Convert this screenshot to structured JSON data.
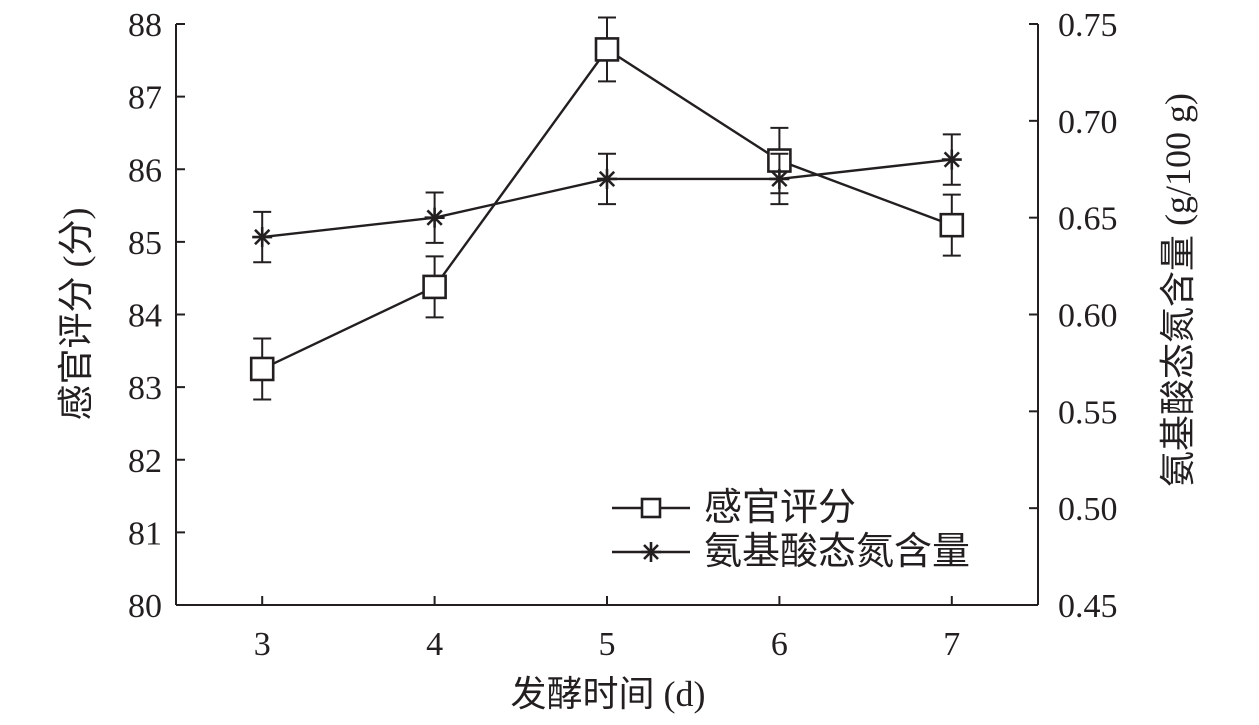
{
  "chart_data": {
    "type": "line",
    "title": "",
    "xlabel": "发酵时间 (d)",
    "ylabel": "感官评分 (分)",
    "y2label": "氨基酸态氮含量 (g/100 g)",
    "x": [
      3,
      4,
      5,
      6,
      7
    ],
    "xlim": [
      2.5,
      7.5
    ],
    "ylim": [
      80,
      88
    ],
    "y2lim": [
      0.45,
      0.75
    ],
    "xticks": [
      "3",
      "4",
      "5",
      "6",
      "7"
    ],
    "yticks": [
      "80",
      "81",
      "82",
      "83",
      "84",
      "85",
      "86",
      "87",
      "88"
    ],
    "y2ticks": [
      "0.45",
      "0.50",
      "0.55",
      "0.60",
      "0.65",
      "0.70",
      "0.75"
    ],
    "grid": false,
    "legend_position": "bottom-right",
    "series": [
      {
        "name": "感官评分",
        "axis": "left",
        "marker": "square",
        "values": [
          83.25,
          84.38,
          87.65,
          86.12,
          85.23
        ],
        "errors": [
          0.42,
          0.42,
          0.44,
          0.45,
          0.42
        ]
      },
      {
        "name": "氨基酸态氮含量",
        "axis": "right",
        "marker": "star",
        "values": [
          0.64,
          0.65,
          0.67,
          0.67,
          0.68
        ],
        "errors": [
          0.013,
          0.013,
          0.013,
          0.013,
          0.013
        ]
      }
    ]
  }
}
